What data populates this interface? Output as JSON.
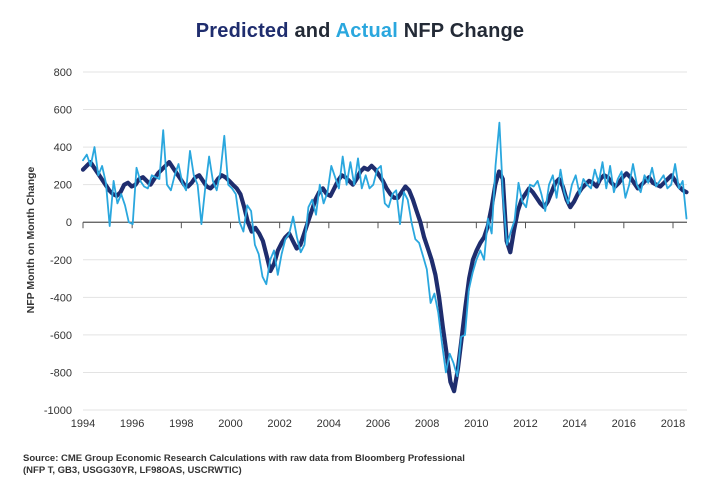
{
  "title": {
    "part1": "Predicted",
    "part2": " and ",
    "part3": "Actual",
    "part4": " NFP Change"
  },
  "source": {
    "line1": "Source: CME Group Economic Research Calculations with raw data from Bloomberg Professional",
    "line2": "(NFP T, GB3, USGG30YR, LF98OAS, USCRWTIC)"
  },
  "colors": {
    "predicted": "#1f2d6e",
    "actual": "#2aa7de",
    "grid": "#e3e3e3",
    "zero_axis": "#555555"
  },
  "chart_data": {
    "type": "line",
    "title": "Predicted and Actual NFP Change",
    "xlabel": "",
    "ylabel": "NFP Month on Month Change",
    "xlim": [
      1994,
      2018.6
    ],
    "ylim": [
      -1000,
      800
    ],
    "yticks": [
      800,
      600,
      400,
      200,
      0,
      -200,
      -400,
      -600,
      -800,
      -1000
    ],
    "xticks": [
      1994,
      1996,
      1998,
      2000,
      2002,
      2004,
      2006,
      2008,
      2010,
      2012,
      2014,
      2016,
      2018
    ],
    "grid": true,
    "legend": "title-colored",
    "x_start": 1994.0,
    "x_step": 0.1667,
    "series": [
      {
        "name": "Predicted",
        "values": [
          280,
          300,
          320,
          290,
          260,
          230,
          200,
          170,
          150,
          140,
          160,
          200,
          210,
          190,
          200,
          230,
          240,
          220,
          200,
          230,
          260,
          280,
          300,
          320,
          290,
          260,
          230,
          200,
          190,
          210,
          240,
          250,
          220,
          190,
          180,
          200,
          230,
          250,
          240,
          220,
          200,
          180,
          150,
          80,
          0,
          -50,
          -30,
          -60,
          -100,
          -180,
          -260,
          -220,
          -150,
          -110,
          -80,
          -60,
          -100,
          -140,
          -120,
          -60,
          0,
          60,
          120,
          160,
          180,
          150,
          140,
          180,
          220,
          250,
          240,
          220,
          200,
          230,
          270,
          290,
          280,
          300,
          280,
          250,
          220,
          180,
          150,
          130,
          130,
          160,
          190,
          170,
          120,
          60,
          0,
          -80,
          -140,
          -200,
          -280,
          -400,
          -560,
          -700,
          -850,
          -900,
          -780,
          -620,
          -450,
          -300,
          -200,
          -150,
          -110,
          -80,
          -20,
          80,
          200,
          270,
          230,
          -100,
          -160,
          -40,
          60,
          120,
          150,
          180,
          160,
          130,
          100,
          80,
          110,
          160,
          210,
          230,
          190,
          120,
          80,
          110,
          150,
          180,
          200,
          220,
          210,
          190,
          230,
          250,
          240,
          210,
          190,
          210,
          240,
          260,
          240,
          210,
          180,
          200,
          220,
          240,
          210,
          200,
          190,
          210,
          230,
          250,
          220,
          190,
          170,
          160
        ]
      },
      {
        "name": "Actual",
        "values": [
          330,
          360,
          300,
          400,
          250,
          300,
          210,
          -20,
          220,
          100,
          150,
          90,
          0,
          -10,
          290,
          220,
          190,
          180,
          250,
          240,
          230,
          490,
          200,
          170,
          250,
          310,
          210,
          170,
          380,
          250,
          200,
          -10,
          180,
          350,
          220,
          170,
          270,
          460,
          200,
          180,
          150,
          0,
          -50,
          90,
          60,
          -120,
          -170,
          -290,
          -330,
          -200,
          -150,
          -280,
          -170,
          -90,
          -60,
          30,
          -80,
          -160,
          -120,
          80,
          120,
          40,
          200,
          100,
          160,
          300,
          240,
          180,
          350,
          200,
          320,
          200,
          340,
          180,
          250,
          180,
          200,
          280,
          300,
          100,
          80,
          150,
          170,
          -10,
          160,
          120,
          0,
          -90,
          -110,
          -180,
          -250,
          -430,
          -380,
          -480,
          -650,
          -800,
          -700,
          -750,
          -820,
          -610,
          -600,
          -360,
          -270,
          -200,
          -150,
          -200,
          20,
          -60,
          300,
          530,
          120,
          -120,
          -50,
          10,
          210,
          110,
          80,
          200,
          190,
          220,
          150,
          60,
          200,
          250,
          130,
          280,
          160,
          100,
          200,
          250,
          150,
          230,
          200,
          180,
          280,
          210,
          320,
          180,
          300,
          160,
          230,
          270,
          130,
          200,
          310,
          200,
          160,
          250,
          210,
          290,
          190,
          220,
          250,
          180,
          200,
          310,
          180,
          220,
          20
        ]
      }
    ]
  }
}
